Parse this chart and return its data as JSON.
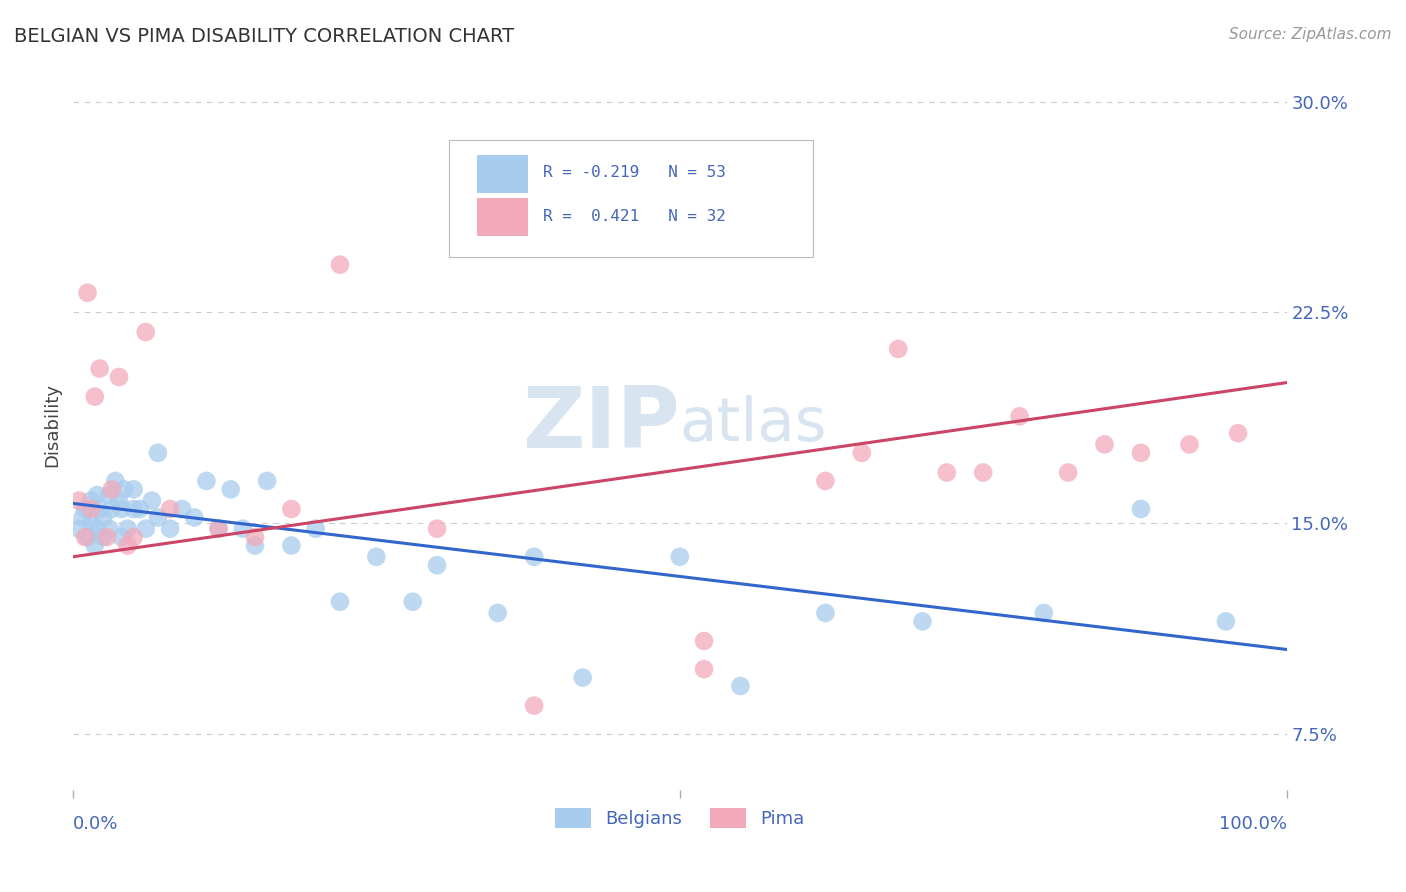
{
  "title": "BELGIAN VS PIMA DISABILITY CORRELATION CHART",
  "source": "Source: ZipAtlas.com",
  "ylabel": "Disability",
  "xlim": [
    0.0,
    1.0
  ],
  "ylim": [
    0.055,
    0.315
  ],
  "yticks": [
    0.075,
    0.15,
    0.225,
    0.3
  ],
  "ytick_labels": [
    "7.5%",
    "15.0%",
    "22.5%",
    "30.0%"
  ],
  "r_blue": -0.219,
  "n_blue": 53,
  "r_pink": 0.421,
  "n_pink": 32,
  "blue_color": "#A8CCEE",
  "pink_color": "#F2AABB",
  "blue_line_color": "#3366CC",
  "pink_line_color": "#CC4466",
  "title_color": "#333333",
  "axis_label_color": "#4466BB",
  "watermark_color": "#D8E4F0",
  "grid_color": "#CCCCCC",
  "background_color": "#FFFFFF",
  "blue_scatter_x": [
    0.005,
    0.008,
    0.01,
    0.012,
    0.015,
    0.015,
    0.018,
    0.02,
    0.02,
    0.022,
    0.025,
    0.025,
    0.03,
    0.03,
    0.032,
    0.035,
    0.038,
    0.04,
    0.04,
    0.042,
    0.045,
    0.05,
    0.05,
    0.055,
    0.06,
    0.065,
    0.07,
    0.07,
    0.08,
    0.09,
    0.1,
    0.11,
    0.12,
    0.13,
    0.14,
    0.15,
    0.16,
    0.18,
    0.2,
    0.22,
    0.25,
    0.28,
    0.3,
    0.35,
    0.38,
    0.42,
    0.5,
    0.55,
    0.62,
    0.7,
    0.8,
    0.88,
    0.95
  ],
  "blue_scatter_y": [
    0.148,
    0.152,
    0.155,
    0.145,
    0.15,
    0.158,
    0.142,
    0.16,
    0.148,
    0.155,
    0.145,
    0.152,
    0.148,
    0.16,
    0.155,
    0.165,
    0.158,
    0.145,
    0.155,
    0.162,
    0.148,
    0.155,
    0.162,
    0.155,
    0.148,
    0.158,
    0.152,
    0.175,
    0.148,
    0.155,
    0.152,
    0.165,
    0.148,
    0.162,
    0.148,
    0.142,
    0.165,
    0.142,
    0.148,
    0.122,
    0.138,
    0.122,
    0.135,
    0.118,
    0.138,
    0.095,
    0.138,
    0.092,
    0.118,
    0.115,
    0.118,
    0.155,
    0.115
  ],
  "pink_scatter_x": [
    0.005,
    0.01,
    0.012,
    0.015,
    0.018,
    0.022,
    0.028,
    0.032,
    0.038,
    0.045,
    0.05,
    0.06,
    0.08,
    0.12,
    0.15,
    0.18,
    0.22,
    0.3,
    0.38,
    0.52,
    0.52,
    0.62,
    0.65,
    0.68,
    0.72,
    0.75,
    0.78,
    0.82,
    0.85,
    0.88,
    0.92,
    0.96
  ],
  "pink_scatter_y": [
    0.158,
    0.145,
    0.232,
    0.155,
    0.195,
    0.205,
    0.145,
    0.162,
    0.202,
    0.142,
    0.145,
    0.218,
    0.155,
    0.148,
    0.145,
    0.155,
    0.242,
    0.148,
    0.085,
    0.098,
    0.108,
    0.165,
    0.175,
    0.212,
    0.168,
    0.168,
    0.188,
    0.168,
    0.178,
    0.175,
    0.178,
    0.182
  ],
  "blue_line_y_start": 0.157,
  "blue_line_y_end": 0.105,
  "pink_line_y_start": 0.138,
  "pink_line_y_end": 0.2
}
